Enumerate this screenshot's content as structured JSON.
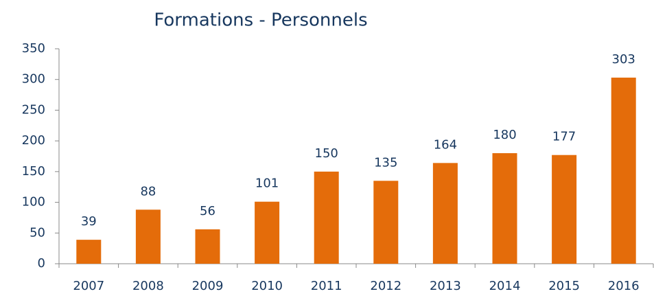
{
  "chart_data": {
    "type": "bar",
    "title": "Formations - Personnels",
    "categories": [
      "2007",
      "2008",
      "2009",
      "2010",
      "2011",
      "2012",
      "2013",
      "2014",
      "2015",
      "2016"
    ],
    "values": [
      39,
      88,
      56,
      101,
      150,
      135,
      164,
      180,
      177,
      303
    ],
    "color": "#e46c0a",
    "ylim": [
      0,
      350
    ],
    "yticks": [
      0,
      50,
      100,
      150,
      200,
      250,
      300,
      350
    ],
    "grid": false
  }
}
